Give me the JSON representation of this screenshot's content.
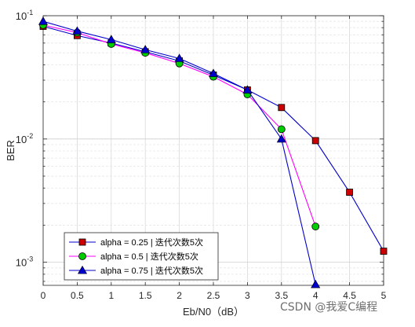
{
  "chart_data": {
    "type": "line",
    "xlabel": "Eb/N0（dB）",
    "ylabel": "BER",
    "y_scale": "log",
    "xlim": [
      0,
      5
    ],
    "ylim": [
      0.00065,
      0.1
    ],
    "x_ticks": [
      0,
      0.5,
      1,
      1.5,
      2,
      2.5,
      3,
      3.5,
      4,
      4.5,
      5
    ],
    "x_tick_labels": [
      "0",
      "0.5",
      "1",
      "1.5",
      "2",
      "2.5",
      "3",
      "3.5",
      "4",
      "4.5",
      "5"
    ],
    "y_ticks": [
      0.1,
      0.01,
      0.001
    ],
    "y_tick_labels": [
      {
        "base": "10",
        "exp": "-1"
      },
      {
        "base": "10",
        "exp": "-2"
      },
      {
        "base": "10",
        "exp": "-3"
      }
    ],
    "grid": true,
    "legend_position": "bottom-left",
    "series": [
      {
        "name": "alpha = 0.25 | 迭代次数5次",
        "line_color": "#0000cc",
        "marker": "square",
        "marker_color": "#cc0000",
        "x": [
          0,
          0.5,
          1,
          1.5,
          2,
          2.5,
          3,
          3.5,
          4,
          4.5,
          5
        ],
        "y": [
          0.082,
          0.069,
          0.06,
          0.051,
          0.043,
          0.033,
          0.025,
          0.018,
          0.0097,
          0.0037,
          0.00123
        ]
      },
      {
        "name": "alpha = 0.5 | 迭代次数5次",
        "line_color": "#ff00ff",
        "marker": "circle",
        "marker_color": "#00cc00",
        "x": [
          0,
          0.5,
          1,
          1.5,
          2,
          2.5,
          3,
          3.5,
          4
        ],
        "y": [
          0.084,
          0.073,
          0.059,
          0.05,
          0.041,
          0.032,
          0.023,
          0.012,
          0.00195
        ]
      },
      {
        "name": "alpha = 0.75 | 迭代次数5次",
        "line_color": "#0000cc",
        "marker": "triangle",
        "marker_color": "#0000cc",
        "x": [
          0,
          0.5,
          1,
          1.5,
          2,
          2.5,
          3,
          3.5,
          4
        ],
        "y": [
          0.09,
          0.075,
          0.064,
          0.053,
          0.045,
          0.034,
          0.025,
          0.01,
          0.00066
        ]
      }
    ]
  },
  "watermark": "CSDN @我爱C编程"
}
